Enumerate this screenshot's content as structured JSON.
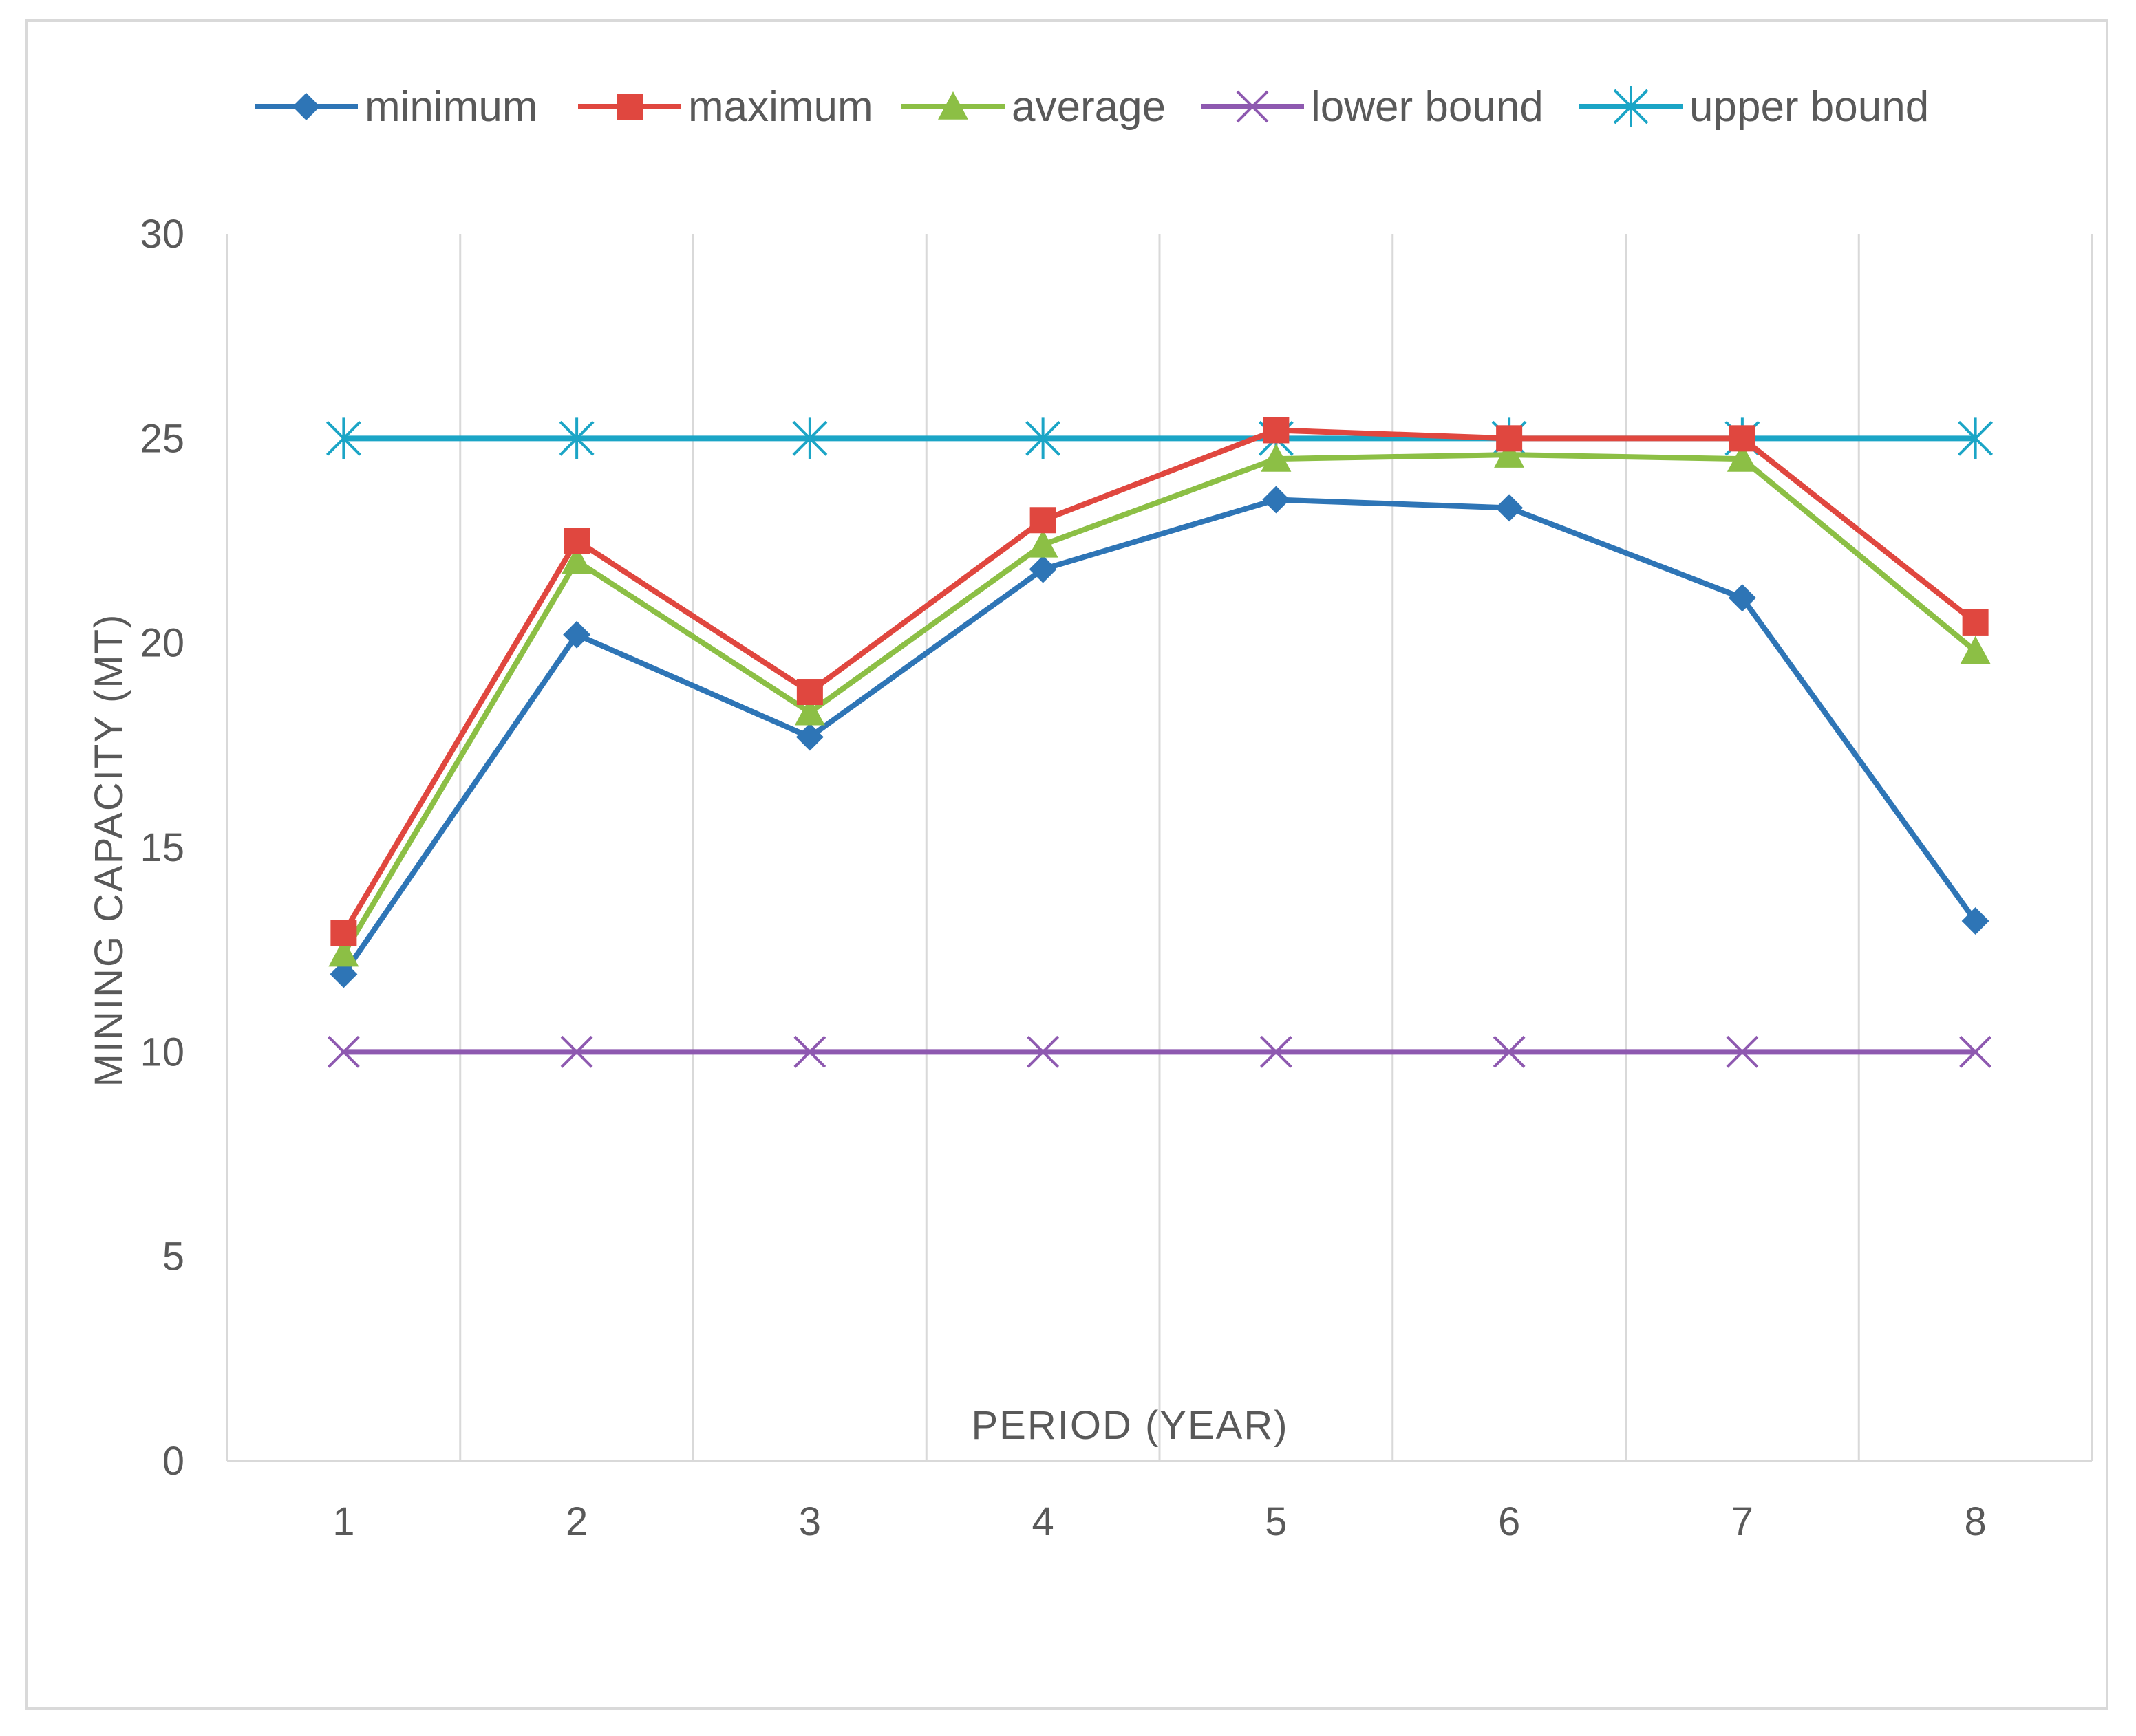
{
  "chart_data": {
    "type": "line",
    "title": "",
    "xlabel": "PERIOD (YEAR)",
    "ylabel": "MINING CAPACITY (MT)",
    "categories": [
      "1",
      "2",
      "3",
      "4",
      "5",
      "6",
      "7",
      "8"
    ],
    "y_ticks": [
      "0",
      "5",
      "10",
      "15",
      "20",
      "25",
      "30"
    ],
    "ylim": [
      0,
      30
    ],
    "grid": "vertical",
    "legend_position": "top",
    "series": [
      {
        "name": "minimum",
        "color": "#2e75b6",
        "marker": "diamond",
        "values": [
          11.9,
          20.2,
          17.7,
          21.8,
          23.5,
          23.3,
          21.1,
          13.2
        ]
      },
      {
        "name": "maximum",
        "color": "#e0473f",
        "marker": "square",
        "values": [
          12.9,
          22.5,
          18.8,
          23.0,
          25.2,
          25.0,
          25.0,
          20.5
        ]
      },
      {
        "name": "average",
        "color": "#8cbf45",
        "marker": "triangle",
        "values": [
          12.4,
          22.0,
          18.3,
          22.4,
          24.5,
          24.6,
          24.5,
          19.8
        ]
      },
      {
        "name": "lower bound",
        "color": "#8e59b0",
        "marker": "x",
        "values": [
          10,
          10,
          10,
          10,
          10,
          10,
          10,
          10
        ]
      },
      {
        "name": "upper bound",
        "color": "#1ba5c6",
        "marker": "star",
        "values": [
          25,
          25,
          25,
          25,
          25,
          25,
          25,
          25
        ]
      }
    ]
  }
}
